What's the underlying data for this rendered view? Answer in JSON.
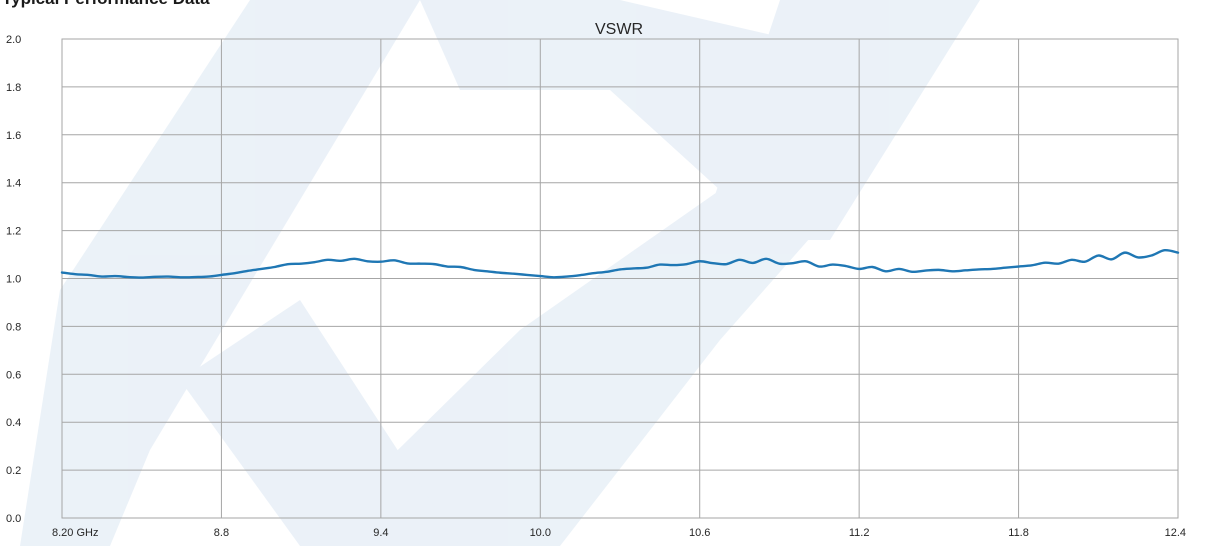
{
  "page": {
    "heading": "Typical Performance Data"
  },
  "colors": {
    "series": "#1f77b4",
    "grid": "#a6a6a6",
    "watermark": "#dbe7f3"
  },
  "chart_data": {
    "type": "line",
    "title": "VSWR",
    "xlabel": "",
    "ylabel": "",
    "xlim": [
      8.2,
      12.4
    ],
    "ylim": [
      0,
      2.0
    ],
    "grid": true,
    "legend": "none",
    "x_ticks": [
      {
        "value": 8.2,
        "label": "8.20 GHz"
      },
      {
        "value": 8.8,
        "label": "8.8"
      },
      {
        "value": 9.4,
        "label": "9.4"
      },
      {
        "value": 10.0,
        "label": "10.0"
      },
      {
        "value": 10.6,
        "label": "10.6"
      },
      {
        "value": 11.2,
        "label": "11.2"
      },
      {
        "value": 11.8,
        "label": "11.8"
      },
      {
        "value": 12.4,
        "label": "12.4"
      }
    ],
    "y_ticks": [
      {
        "value": 0.0,
        "label": "0.0"
      },
      {
        "value": 0.2,
        "label": "0.2"
      },
      {
        "value": 0.4,
        "label": "0.4"
      },
      {
        "value": 0.6,
        "label": "0.6"
      },
      {
        "value": 0.8,
        "label": "0.8"
      },
      {
        "value": 1.0,
        "label": "1.0"
      },
      {
        "value": 1.2,
        "label": "1.2"
      },
      {
        "value": 1.4,
        "label": "1.4"
      },
      {
        "value": 1.6,
        "label": "1.6"
      },
      {
        "value": 1.8,
        "label": "1.8"
      },
      {
        "value": 2.0,
        "label": "2.0"
      }
    ],
    "series": [
      {
        "x": [
          8.2,
          8.25,
          8.3,
          8.35,
          8.4,
          8.45,
          8.5,
          8.55,
          8.6,
          8.65,
          8.7,
          8.75,
          8.8,
          8.85,
          8.9,
          8.95,
          9.0,
          9.05,
          9.1,
          9.15,
          9.2,
          9.25,
          9.3,
          9.35,
          9.4,
          9.45,
          9.5,
          9.55,
          9.6,
          9.65,
          9.7,
          9.75,
          9.8,
          9.85,
          9.9,
          9.95,
          10.0,
          10.05,
          10.1,
          10.15,
          10.2,
          10.25,
          10.3,
          10.35,
          10.4,
          10.45,
          10.5,
          10.55,
          10.6,
          10.65,
          10.7,
          10.75,
          10.8,
          10.85,
          10.9,
          10.95,
          11.0,
          11.05,
          11.1,
          11.15,
          11.2,
          11.25,
          11.3,
          11.35,
          11.4,
          11.45,
          11.5,
          11.55,
          11.6,
          11.65,
          11.7,
          11.75,
          11.8,
          11.85,
          11.9,
          11.95,
          12.0,
          12.05,
          12.1,
          12.15,
          12.2,
          12.25,
          12.3,
          12.35,
          12.4
        ],
        "y": [
          1.025,
          1.018,
          1.015,
          1.008,
          1.01,
          1.006,
          1.004,
          1.007,
          1.008,
          1.005,
          1.006,
          1.008,
          1.015,
          1.022,
          1.032,
          1.04,
          1.048,
          1.06,
          1.062,
          1.068,
          1.078,
          1.074,
          1.082,
          1.072,
          1.07,
          1.076,
          1.063,
          1.062,
          1.06,
          1.05,
          1.048,
          1.036,
          1.03,
          1.024,
          1.02,
          1.015,
          1.01,
          1.005,
          1.008,
          1.014,
          1.022,
          1.028,
          1.038,
          1.042,
          1.045,
          1.058,
          1.056,
          1.06,
          1.072,
          1.064,
          1.06,
          1.078,
          1.065,
          1.082,
          1.062,
          1.064,
          1.072,
          1.05,
          1.058,
          1.052,
          1.04,
          1.048,
          1.03,
          1.04,
          1.028,
          1.033,
          1.036,
          1.03,
          1.034,
          1.038,
          1.04,
          1.045,
          1.05,
          1.055,
          1.066,
          1.062,
          1.078,
          1.07,
          1.096,
          1.08,
          1.108,
          1.088,
          1.096,
          1.118,
          1.108
        ]
      }
    ]
  }
}
